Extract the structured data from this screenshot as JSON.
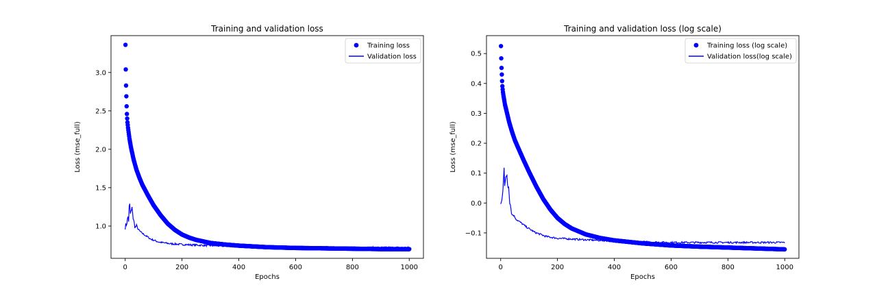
{
  "chart_data": [
    {
      "type": "scatter+line",
      "title": "Training and validation loss",
      "xlabel": "Epochs",
      "ylabel": "Loss (mse_full)",
      "xlim": [
        -50,
        1050
      ],
      "ylim": [
        0.58,
        3.48
      ],
      "xticks": [
        0,
        200,
        400,
        600,
        800,
        1000
      ],
      "yticks": [
        1.0,
        1.5,
        2.0,
        2.5,
        3.0
      ],
      "ytick_labels": [
        "1.0",
        "1.5",
        "2.0",
        "2.5",
        "3.0"
      ],
      "xtick_labels": [
        "0",
        "200",
        "400",
        "600",
        "800",
        "1000"
      ],
      "legend": "top-right",
      "series": [
        {
          "name": "Training loss",
          "kind": "markers",
          "color": "#0000ff",
          "points": [
            [
              1,
              3.36
            ],
            [
              2,
              3.04
            ],
            [
              3,
              2.83
            ],
            [
              4,
              2.69
            ],
            [
              5,
              2.56
            ],
            [
              6,
              2.46
            ],
            [
              7,
              2.4
            ],
            [
              8,
              2.35
            ],
            [
              10,
              2.28
            ],
            [
              15,
              2.14
            ],
            [
              20,
              2.03
            ],
            [
              30,
              1.86
            ],
            [
              40,
              1.73
            ],
            [
              50,
              1.63
            ],
            [
              60,
              1.54
            ],
            [
              80,
              1.4
            ],
            [
              100,
              1.27
            ],
            [
              125,
              1.14
            ],
            [
              150,
              1.03
            ],
            [
              175,
              0.95
            ],
            [
              200,
              0.89
            ],
            [
              225,
              0.85
            ],
            [
              250,
              0.82
            ],
            [
              300,
              0.78
            ],
            [
              350,
              0.76
            ],
            [
              400,
              0.745
            ],
            [
              500,
              0.725
            ],
            [
              600,
              0.715
            ],
            [
              700,
              0.71
            ],
            [
              800,
              0.705
            ],
            [
              900,
              0.7
            ],
            [
              1000,
              0.7
            ]
          ]
        },
        {
          "name": "Validation loss",
          "kind": "line",
          "color": "#0000ff",
          "points": [
            [
              0,
              0.99
            ],
            [
              5,
              1.03
            ],
            [
              10,
              1.12
            ],
            [
              12,
              1.07
            ],
            [
              15,
              1.33
            ],
            [
              18,
              1.16
            ],
            [
              22,
              1.2
            ],
            [
              25,
              1.24
            ],
            [
              28,
              1.1
            ],
            [
              32,
              1.03
            ],
            [
              36,
              0.98
            ],
            [
              40,
              1.01
            ],
            [
              45,
              0.96
            ],
            [
              55,
              0.92
            ],
            [
              70,
              0.88
            ],
            [
              90,
              0.83
            ],
            [
              120,
              0.79
            ],
            [
              160,
              0.77
            ],
            [
              200,
              0.76
            ],
            [
              300,
              0.745
            ],
            [
              400,
              0.735
            ],
            [
              500,
              0.73
            ],
            [
              600,
              0.725
            ],
            [
              700,
              0.72
            ],
            [
              800,
              0.72
            ],
            [
              900,
              0.72
            ],
            [
              1000,
              0.72
            ]
          ]
        }
      ]
    },
    {
      "type": "scatter+line",
      "title": "Training and validation loss (log scale)",
      "xlabel": "Epochs",
      "ylabel": "Loss (mse_full)",
      "xlim": [
        -50,
        1050
      ],
      "ylim": [
        -0.185,
        0.56
      ],
      "xticks": [
        0,
        200,
        400,
        600,
        800,
        1000
      ],
      "yticks": [
        -0.1,
        0.0,
        0.1,
        0.2,
        0.3,
        0.4,
        0.5
      ],
      "ytick_labels": [
        "−0.1",
        "0.0",
        "0.1",
        "0.2",
        "0.3",
        "0.4",
        "0.5"
      ],
      "xtick_labels": [
        "0",
        "200",
        "400",
        "600",
        "800",
        "1000"
      ],
      "legend": "top-right",
      "series": [
        {
          "name": "Training loss (log scale)",
          "kind": "markers",
          "color": "#0000ff",
          "points": [
            [
              1,
              0.525
            ],
            [
              2,
              0.484
            ],
            [
              3,
              0.452
            ],
            [
              4,
              0.43
            ],
            [
              5,
              0.408
            ],
            [
              6,
              0.391
            ],
            [
              7,
              0.38
            ],
            [
              8,
              0.371
            ],
            [
              10,
              0.358
            ],
            [
              15,
              0.33
            ],
            [
              20,
              0.31
            ],
            [
              30,
              0.27
            ],
            [
              40,
              0.238
            ],
            [
              50,
              0.21
            ],
            [
              60,
              0.188
            ],
            [
              80,
              0.145
            ],
            [
              100,
              0.104
            ],
            [
              125,
              0.056
            ],
            [
              150,
              0.013
            ],
            [
              175,
              -0.022
            ],
            [
              200,
              -0.05
            ],
            [
              225,
              -0.07
            ],
            [
              250,
              -0.085
            ],
            [
              300,
              -0.105
            ],
            [
              350,
              -0.117
            ],
            [
              400,
              -0.125
            ],
            [
              500,
              -0.135
            ],
            [
              600,
              -0.142
            ],
            [
              700,
              -0.146
            ],
            [
              800,
              -0.149
            ],
            [
              900,
              -0.152
            ],
            [
              1000,
              -0.155
            ]
          ]
        },
        {
          "name": "Validation loss(log scale)",
          "kind": "line",
          "color": "#0000ff",
          "points": [
            [
              0,
              -0.005
            ],
            [
              5,
              0.01
            ],
            [
              8,
              0.05
            ],
            [
              12,
              0.125
            ],
            [
              14,
              0.06
            ],
            [
              18,
              0.08
            ],
            [
              22,
              0.095
            ],
            [
              25,
              0.05
            ],
            [
              28,
              0.06
            ],
            [
              32,
              0.005
            ],
            [
              35,
              -0.01
            ],
            [
              40,
              -0.04
            ],
            [
              45,
              -0.04
            ],
            [
              55,
              -0.055
            ],
            [
              70,
              -0.065
            ],
            [
              90,
              -0.08
            ],
            [
              120,
              -0.098
            ],
            [
              160,
              -0.112
            ],
            [
              200,
              -0.118
            ],
            [
              300,
              -0.123
            ],
            [
              400,
              -0.127
            ],
            [
              500,
              -0.13
            ],
            [
              600,
              -0.132
            ],
            [
              700,
              -0.132
            ],
            [
              800,
              -0.132
            ],
            [
              900,
              -0.132
            ],
            [
              1000,
              -0.132
            ]
          ]
        }
      ]
    }
  ]
}
